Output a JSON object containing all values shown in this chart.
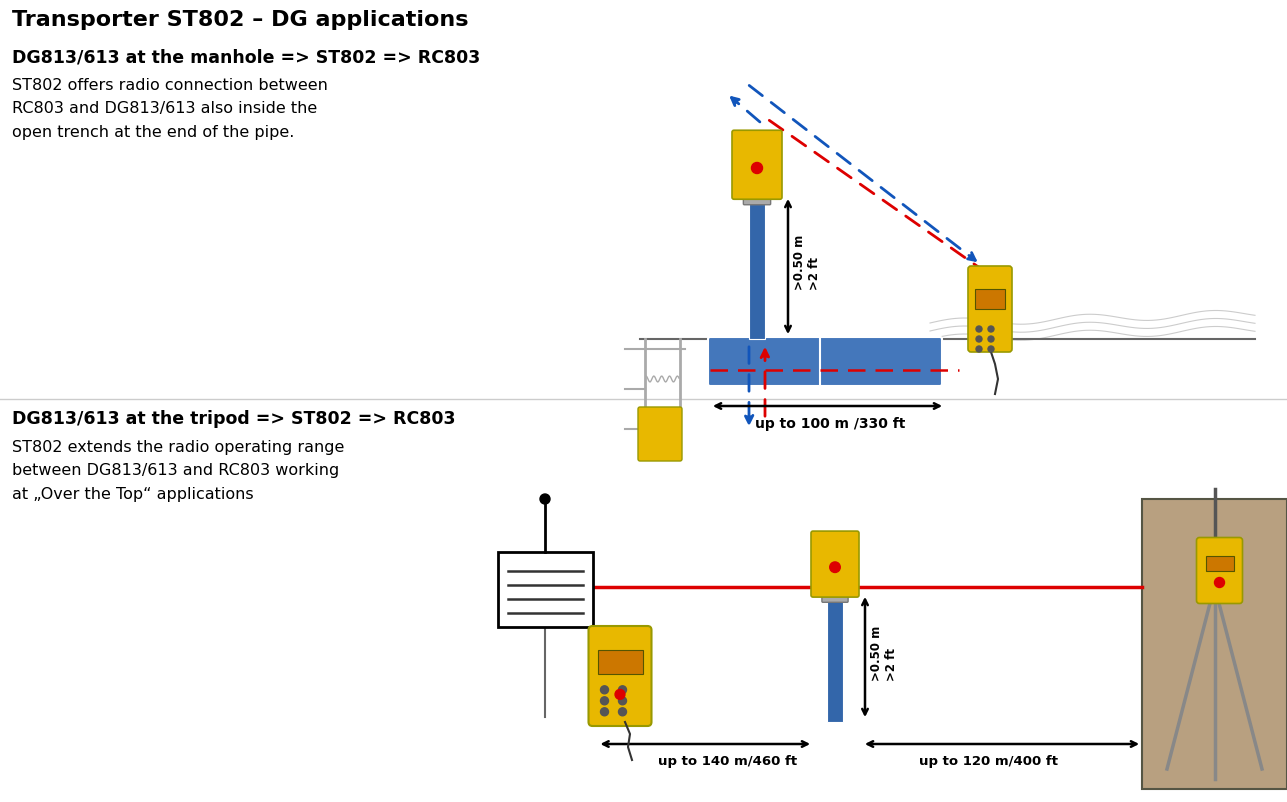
{
  "title": "Transporter ST802 – DG applications",
  "section1_bold": "DG813/613 at the manhole => ST802 => RC803",
  "section1_body": "ST802 offers radio connection between\nRC803 and DG813/613 also inside the\nopen trench at the end of the pipe.",
  "section2_bold": "DG813/613 at the tripod => ST802 => RC803",
  "section2_body": "ST802 extends the radio operating range\nbetween DG813/613 and RC803 working\nat „Over the Top“ applications",
  "label_100m": "up to 100 m /330 ft",
  "label_050m_top": ">0.50 m\n>2 ft",
  "label_140m": "up to 140 m/460 ft",
  "label_120m": "up to 120 m/400 ft",
  "label_050m_bot": ">0.50 m\n>2 ft",
  "bg_color": "#ffffff",
  "text_color": "#000000",
  "red_color": "#dd0000",
  "blue_color": "#1155bb",
  "device_yellow": "#e8b800",
  "device_blue": "#3366aa",
  "pipe_blue": "#4477bb",
  "gray_dark": "#666666",
  "gray_light": "#aaaaaa"
}
